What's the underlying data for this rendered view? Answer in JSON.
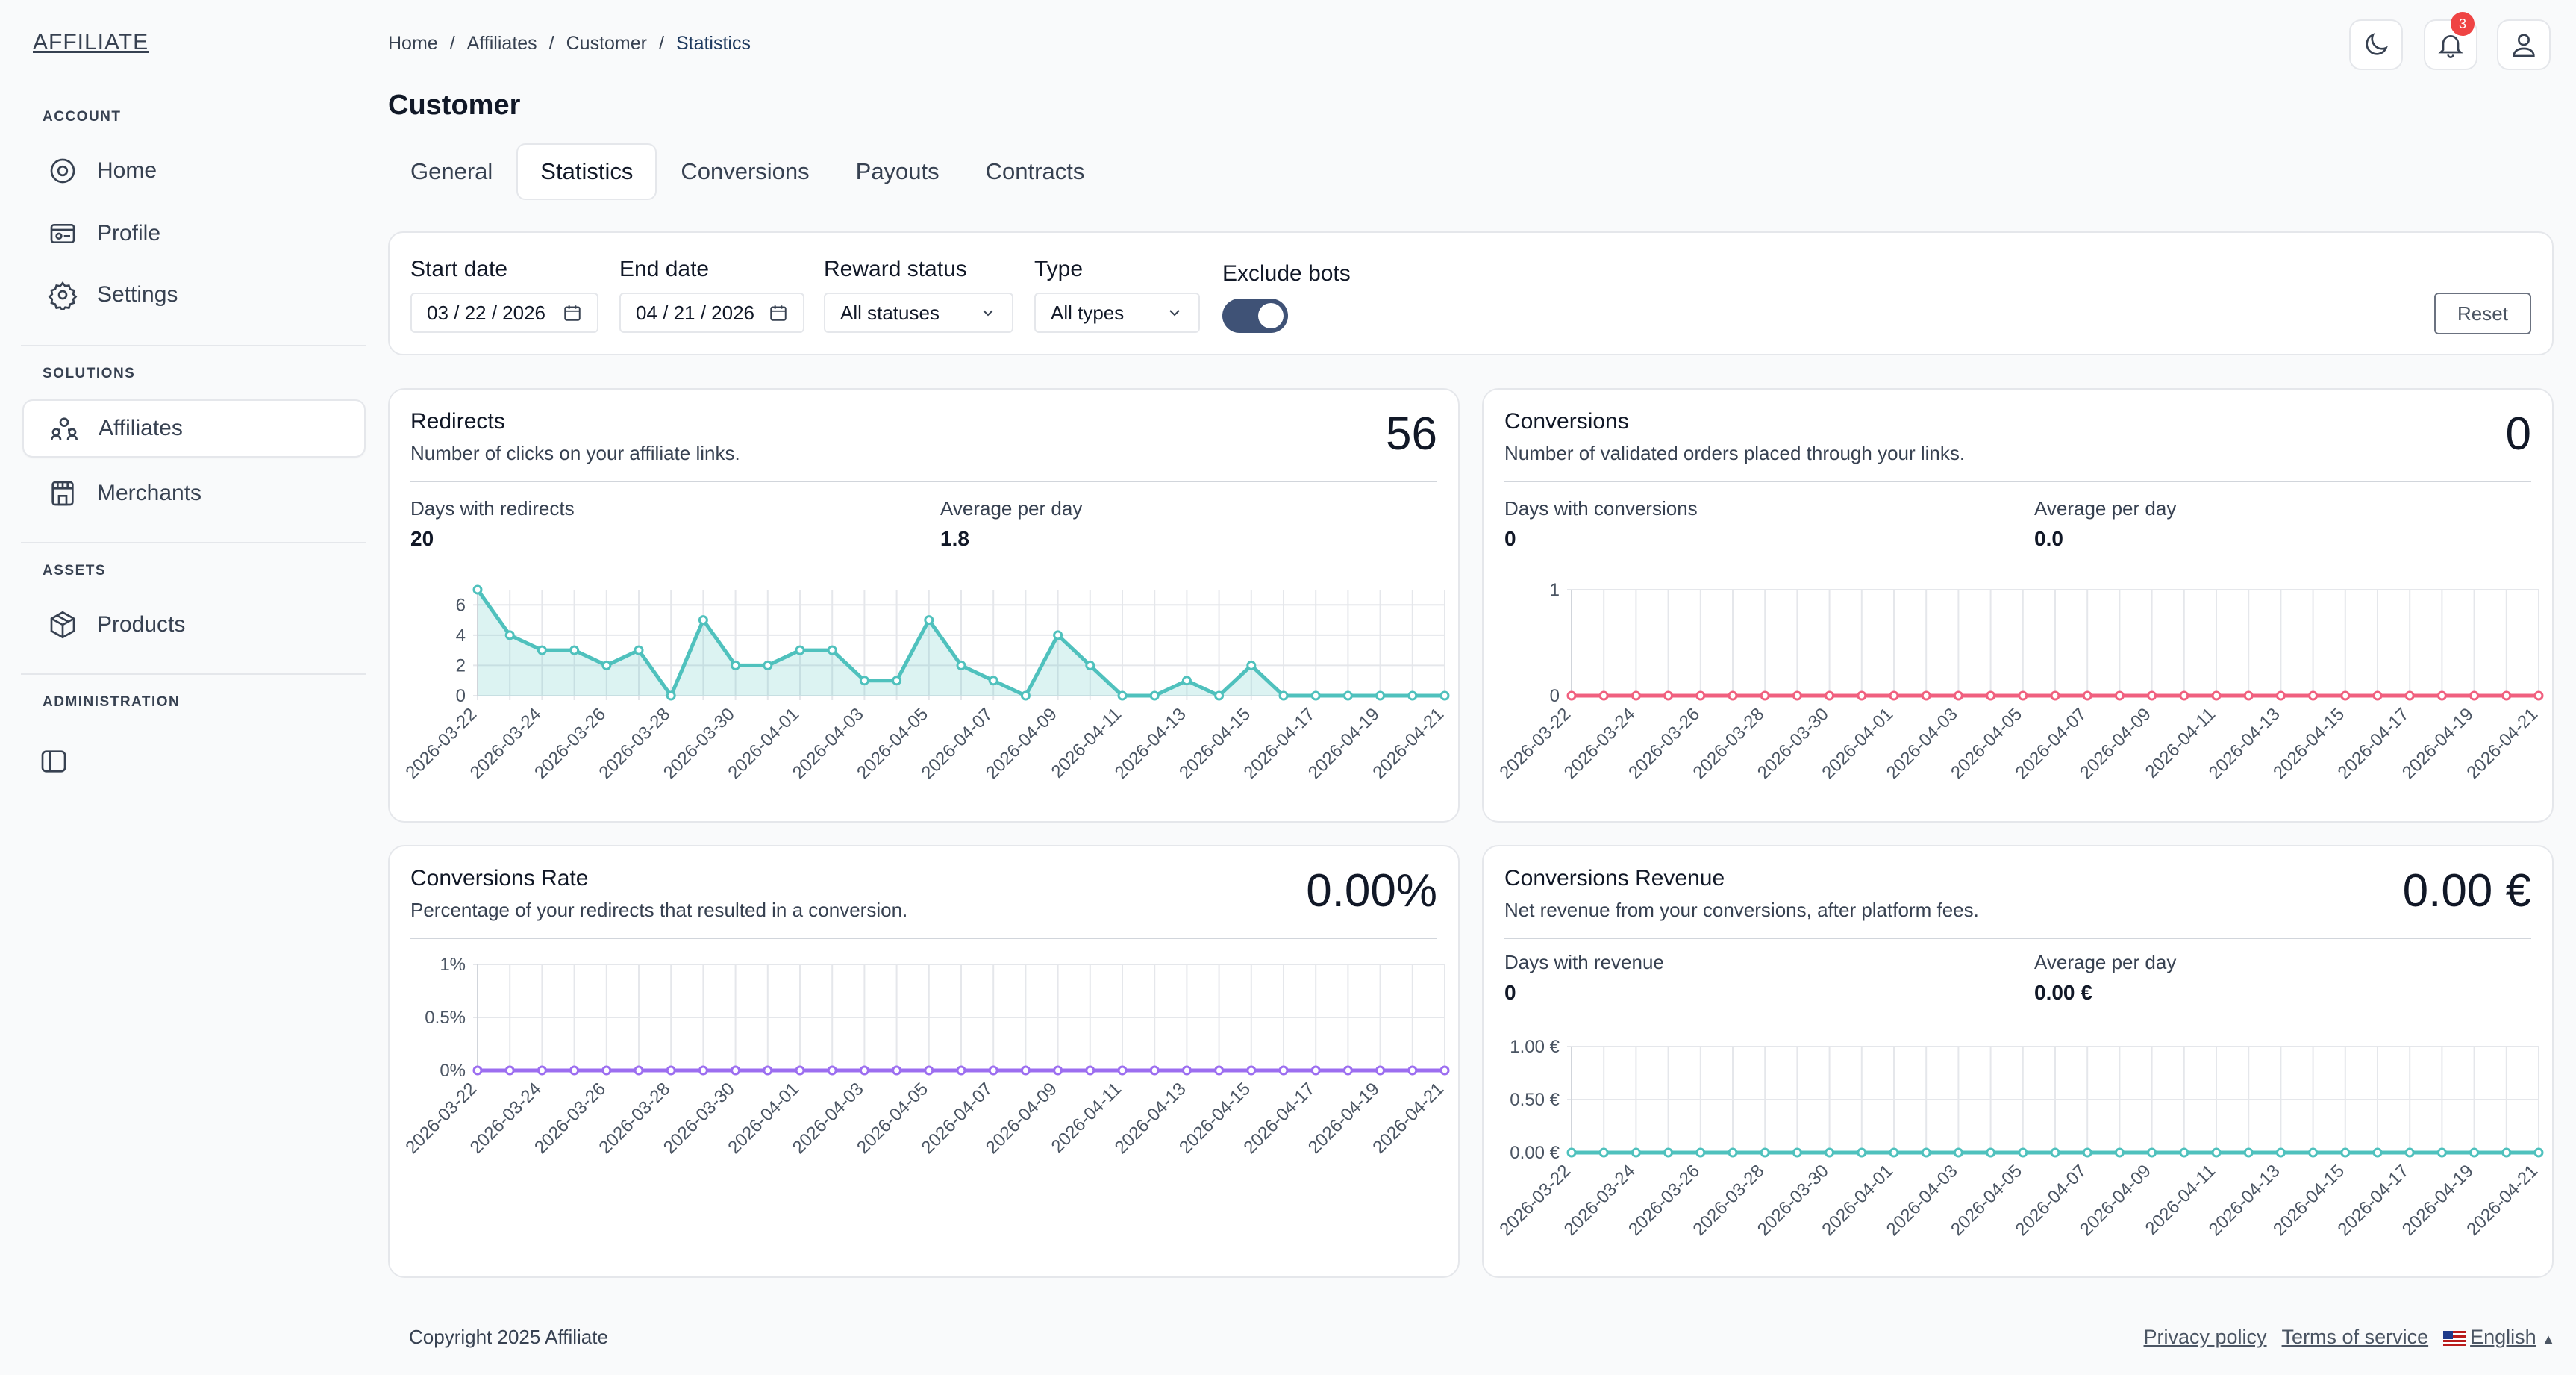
{
  "app": {
    "logo": "AFFILIATE"
  },
  "sidebar": {
    "sections": [
      {
        "title": "ACCOUNT"
      },
      {
        "title": "SOLUTIONS"
      },
      {
        "title": "ASSETS"
      },
      {
        "title": "ADMINISTRATION"
      }
    ],
    "items": [
      {
        "label": "Home",
        "icon": "home-icon"
      },
      {
        "label": "Profile",
        "icon": "id-card-icon"
      },
      {
        "label": "Settings",
        "icon": "gear-icon"
      },
      {
        "label": "Affiliates",
        "icon": "users-icon",
        "active": true
      },
      {
        "label": "Merchants",
        "icon": "store-icon"
      },
      {
        "label": "Products",
        "icon": "box-icon"
      }
    ]
  },
  "breadcrumb": [
    "Home",
    "Affiliates",
    "Customer",
    "Statistics"
  ],
  "header": {
    "notifications_count": "3"
  },
  "page": {
    "title": "Customer"
  },
  "tabs": [
    "General",
    "Statistics",
    "Conversions",
    "Payouts",
    "Contracts"
  ],
  "filters": {
    "start_date_label": "Start date",
    "start_date": "03 / 22 / 2026",
    "end_date_label": "End date",
    "end_date": "04 / 21 / 2026",
    "reward_status_label": "Reward status",
    "reward_status": "All statuses",
    "type_label": "Type",
    "type": "All types",
    "exclude_bots_label": "Exclude bots",
    "exclude_bots": true,
    "reset_label": "Reset"
  },
  "cards": {
    "redirects": {
      "title": "Redirects",
      "desc": "Number of clicks on your affiliate links.",
      "value": "56",
      "stat1_label": "Days with redirects",
      "stat1_value": "20",
      "stat2_label": "Average per day",
      "stat2_value": "1.8"
    },
    "conversions": {
      "title": "Conversions",
      "desc": "Number of validated orders placed through your links.",
      "value": "0",
      "stat1_label": "Days with conversions",
      "stat1_value": "0",
      "stat2_label": "Average per day",
      "stat2_value": "0.0"
    },
    "rate": {
      "title": "Conversions Rate",
      "desc": "Percentage of your redirects that resulted in a conversion.",
      "value": "0.00%"
    },
    "revenue": {
      "title": "Conversions Revenue",
      "desc": "Net revenue from your conversions, after platform fees.",
      "value": "0.00 €",
      "stat1_label": "Days with revenue",
      "stat1_value": "0",
      "stat2_label": "Average per day",
      "stat2_value": "0.00 €"
    }
  },
  "chart_data": [
    {
      "type": "area",
      "x": [
        "2026-03-22",
        "2026-03-23",
        "2026-03-24",
        "2026-03-25",
        "2026-03-26",
        "2026-03-27",
        "2026-03-28",
        "2026-03-29",
        "2026-03-30",
        "2026-03-31",
        "2026-04-01",
        "2026-04-02",
        "2026-04-03",
        "2026-04-04",
        "2026-04-05",
        "2026-04-06",
        "2026-04-07",
        "2026-04-08",
        "2026-04-09",
        "2026-04-10",
        "2026-04-11",
        "2026-04-12",
        "2026-04-13",
        "2026-04-14",
        "2026-04-15",
        "2026-04-16",
        "2026-04-17",
        "2026-04-18",
        "2026-04-19",
        "2026-04-20",
        "2026-04-21"
      ],
      "xticks": [
        "2026-03-22",
        "2026-03-24",
        "2026-03-26",
        "2026-03-28",
        "2026-03-30",
        "2026-04-01",
        "2026-04-03",
        "2026-04-05",
        "2026-04-07",
        "2026-04-09",
        "2026-04-11",
        "2026-04-13",
        "2026-04-15",
        "2026-04-17",
        "2026-04-19",
        "2026-04-21"
      ],
      "values": [
        7,
        4,
        3,
        3,
        2,
        3,
        0,
        5,
        2,
        2,
        3,
        3,
        1,
        1,
        5,
        2,
        1,
        0,
        4,
        2,
        0,
        0,
        1,
        0,
        2,
        0,
        0,
        0,
        0,
        0,
        0
      ],
      "ylim": [
        0,
        7
      ],
      "yticks": [
        {
          "v": 0,
          "label": "0"
        },
        {
          "v": 2,
          "label": "2"
        },
        {
          "v": 4,
          "label": "4"
        },
        {
          "v": 6,
          "label": "6"
        }
      ],
      "color": "#4fc1bd"
    },
    {
      "type": "line",
      "x": [
        "2026-03-22",
        "2026-03-23",
        "2026-03-24",
        "2026-03-25",
        "2026-03-26",
        "2026-03-27",
        "2026-03-28",
        "2026-03-29",
        "2026-03-30",
        "2026-03-31",
        "2026-04-01",
        "2026-04-02",
        "2026-04-03",
        "2026-04-04",
        "2026-04-05",
        "2026-04-06",
        "2026-04-07",
        "2026-04-08",
        "2026-04-09",
        "2026-04-10",
        "2026-04-11",
        "2026-04-12",
        "2026-04-13",
        "2026-04-14",
        "2026-04-15",
        "2026-04-16",
        "2026-04-17",
        "2026-04-18",
        "2026-04-19",
        "2026-04-20",
        "2026-04-21"
      ],
      "xticks": [
        "2026-03-22",
        "2026-03-24",
        "2026-03-26",
        "2026-03-28",
        "2026-03-30",
        "2026-04-01",
        "2026-04-03",
        "2026-04-05",
        "2026-04-07",
        "2026-04-09",
        "2026-04-11",
        "2026-04-13",
        "2026-04-15",
        "2026-04-17",
        "2026-04-19",
        "2026-04-21"
      ],
      "values": [
        0,
        0,
        0,
        0,
        0,
        0,
        0,
        0,
        0,
        0,
        0,
        0,
        0,
        0,
        0,
        0,
        0,
        0,
        0,
        0,
        0,
        0,
        0,
        0,
        0,
        0,
        0,
        0,
        0,
        0,
        0
      ],
      "ylim": [
        0,
        1
      ],
      "yticks": [
        {
          "v": 0,
          "label": "0"
        },
        {
          "v": 1,
          "label": "1"
        }
      ],
      "color": "#f0607f"
    },
    {
      "type": "line",
      "x": [
        "2026-03-22",
        "2026-03-23",
        "2026-03-24",
        "2026-03-25",
        "2026-03-26",
        "2026-03-27",
        "2026-03-28",
        "2026-03-29",
        "2026-03-30",
        "2026-03-31",
        "2026-04-01",
        "2026-04-02",
        "2026-04-03",
        "2026-04-04",
        "2026-04-05",
        "2026-04-06",
        "2026-04-07",
        "2026-04-08",
        "2026-04-09",
        "2026-04-10",
        "2026-04-11",
        "2026-04-12",
        "2026-04-13",
        "2026-04-14",
        "2026-04-15",
        "2026-04-16",
        "2026-04-17",
        "2026-04-18",
        "2026-04-19",
        "2026-04-20",
        "2026-04-21"
      ],
      "xticks": [
        "2026-03-22",
        "2026-03-24",
        "2026-03-26",
        "2026-03-28",
        "2026-03-30",
        "2026-04-01",
        "2026-04-03",
        "2026-04-05",
        "2026-04-07",
        "2026-04-09",
        "2026-04-11",
        "2026-04-13",
        "2026-04-15",
        "2026-04-17",
        "2026-04-19",
        "2026-04-21"
      ],
      "values": [
        0,
        0,
        0,
        0,
        0,
        0,
        0,
        0,
        0,
        0,
        0,
        0,
        0,
        0,
        0,
        0,
        0,
        0,
        0,
        0,
        0,
        0,
        0,
        0,
        0,
        0,
        0,
        0,
        0,
        0,
        0
      ],
      "ylim": [
        0,
        1
      ],
      "yticks": [
        {
          "v": 0,
          "label": "0%"
        },
        {
          "v": 0.5,
          "label": "0.5%"
        },
        {
          "v": 1,
          "label": "1%"
        }
      ],
      "color": "#9c6ef0"
    },
    {
      "type": "line",
      "x": [
        "2026-03-22",
        "2026-03-23",
        "2026-03-24",
        "2026-03-25",
        "2026-03-26",
        "2026-03-27",
        "2026-03-28",
        "2026-03-29",
        "2026-03-30",
        "2026-03-31",
        "2026-04-01",
        "2026-04-02",
        "2026-04-03",
        "2026-04-04",
        "2026-04-05",
        "2026-04-06",
        "2026-04-07",
        "2026-04-08",
        "2026-04-09",
        "2026-04-10",
        "2026-04-11",
        "2026-04-12",
        "2026-04-13",
        "2026-04-14",
        "2026-04-15",
        "2026-04-16",
        "2026-04-17",
        "2026-04-18",
        "2026-04-19",
        "2026-04-20",
        "2026-04-21"
      ],
      "xticks": [
        "2026-03-22",
        "2026-03-24",
        "2026-03-26",
        "2026-03-28",
        "2026-03-30",
        "2026-04-01",
        "2026-04-03",
        "2026-04-05",
        "2026-04-07",
        "2026-04-09",
        "2026-04-11",
        "2026-04-13",
        "2026-04-15",
        "2026-04-17",
        "2026-04-19",
        "2026-04-21"
      ],
      "values": [
        0,
        0,
        0,
        0,
        0,
        0,
        0,
        0,
        0,
        0,
        0,
        0,
        0,
        0,
        0,
        0,
        0,
        0,
        0,
        0,
        0,
        0,
        0,
        0,
        0,
        0,
        0,
        0,
        0,
        0,
        0
      ],
      "ylim": [
        0,
        1
      ],
      "yticks": [
        {
          "v": 0,
          "label": "0.00 €"
        },
        {
          "v": 0.5,
          "label": "0.50 €"
        },
        {
          "v": 1,
          "label": "1.00 €"
        }
      ],
      "color": "#4fc1bd"
    }
  ],
  "footer": {
    "copyright": "Copyright 2025 Affiliate",
    "privacy": "Privacy policy",
    "terms": "Terms of service",
    "language": "English"
  }
}
